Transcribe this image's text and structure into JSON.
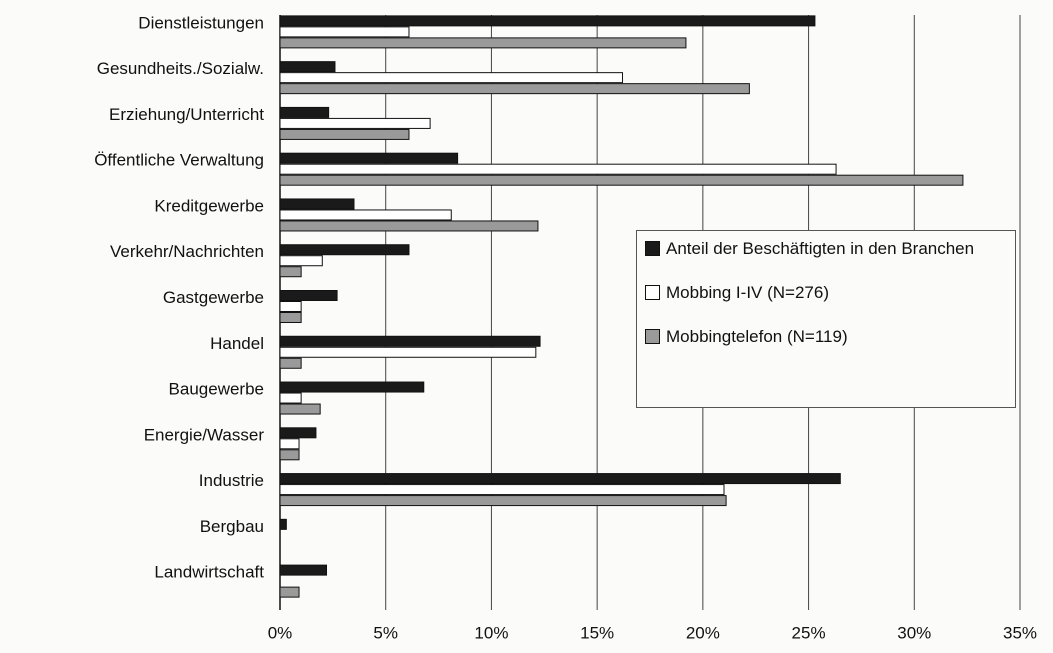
{
  "chart_data": {
    "type": "bar",
    "orientation": "horizontal",
    "categories": [
      "Dienstleistungen",
      "Gesundheits./Sozialw.",
      "Erziehung/Unterricht",
      "Öffentliche Verwaltung",
      "Kreditgewerbe",
      "Verkehr/Nachrichten",
      "Gastgewerbe",
      "Handel",
      "Baugewerbe",
      "Energie/Wasser",
      "Industrie",
      "Bergbau",
      "Landwirtschaft"
    ],
    "series": [
      {
        "name": "Anteil der Beschäftigten in den Branchen",
        "color": "#1a1a1a",
        "values": [
          25.3,
          2.6,
          2.3,
          8.4,
          3.5,
          6.1,
          2.7,
          12.3,
          6.8,
          1.7,
          26.5,
          0.3,
          2.2
        ]
      },
      {
        "name": "Mobbing I-IV (N=276)",
        "color": "#ffffff",
        "values": [
          6.1,
          16.2,
          7.1,
          26.3,
          8.1,
          2.0,
          1.0,
          12.1,
          1.0,
          0.9,
          21.0,
          0,
          0
        ]
      },
      {
        "name": "Mobbingtelefon (N=119)",
        "color": "#9a9a9a",
        "values": [
          19.2,
          22.2,
          6.1,
          32.3,
          12.2,
          1.0,
          1.0,
          1.0,
          1.9,
          0.9,
          21.1,
          0,
          0.9
        ]
      }
    ],
    "xlim": [
      0,
      35
    ],
    "xticks": [
      {
        "value": 0,
        "label": "0%"
      },
      {
        "value": 5,
        "label": "5%"
      },
      {
        "value": 10,
        "label": "10%"
      },
      {
        "value": 15,
        "label": "15%"
      },
      {
        "value": 20,
        "label": "20%"
      },
      {
        "value": 25,
        "label": "25%"
      },
      {
        "value": 30,
        "label": "30%"
      },
      {
        "value": 35,
        "label": "35%"
      }
    ],
    "grid": true,
    "legend": "right"
  }
}
